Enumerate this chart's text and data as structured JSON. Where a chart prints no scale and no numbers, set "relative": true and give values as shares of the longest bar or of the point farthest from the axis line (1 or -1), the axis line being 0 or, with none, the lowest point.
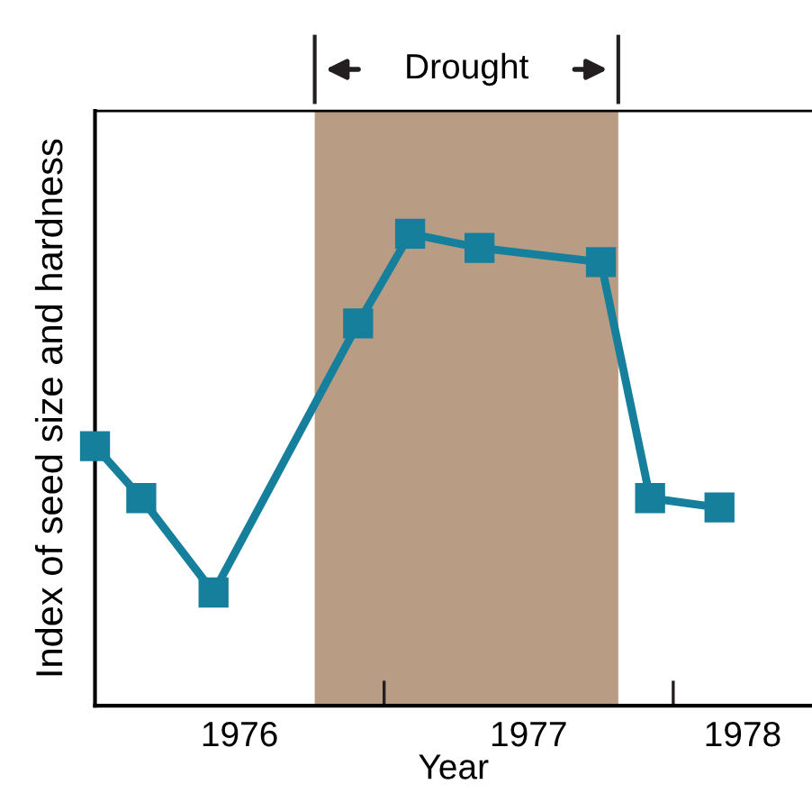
{
  "chart_data": {
    "type": "line",
    "xlabel": "Year",
    "ylabel": "Index of seed size and hardness",
    "relative": true,
    "x": [
      1976.0,
      1976.16,
      1976.41,
      1976.91,
      1977.09,
      1977.33,
      1977.75,
      1977.92,
      1978.16
    ],
    "series": [
      {
        "color": "#167f9c",
        "values": [
          0.55,
          0.44,
          0.24,
          0.81,
          1.0,
          0.97,
          0.94,
          0.44,
          0.42
        ]
      }
    ],
    "marker": "square",
    "line_style": "solid",
    "grid": false,
    "xlim": [
      1976.0,
      1978.48
    ],
    "xticks": [
      {
        "value": 1977,
        "label": null
      },
      {
        "value": 1978,
        "label": null
      },
      {
        "value": 1976.5,
        "label": "1976"
      },
      {
        "value": 1977.5,
        "label": "1977"
      },
      {
        "value": 1978.24,
        "label": "1978"
      }
    ],
    "bands": [
      {
        "axis": "x",
        "from": 1976.76,
        "to": 1977.81,
        "label": "Drought",
        "color": "#b89c84"
      }
    ]
  }
}
